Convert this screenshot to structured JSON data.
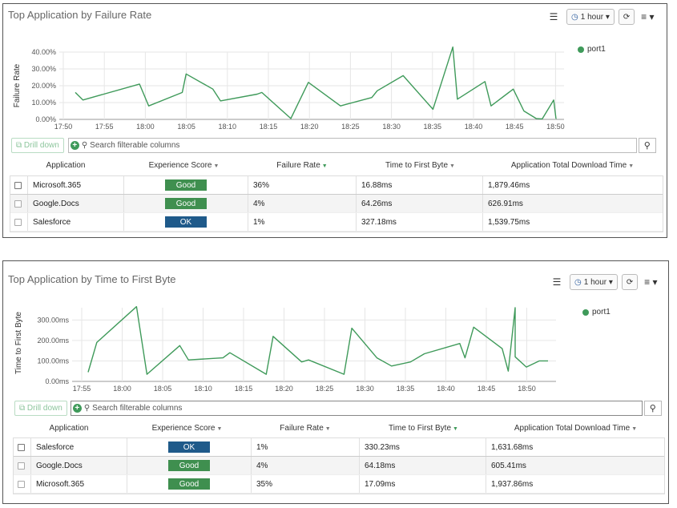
{
  "panels": [
    {
      "title": "Top Application by Failure Rate",
      "time_range": "1 hour",
      "legend": "port1",
      "chart_data": {
        "type": "line",
        "ylabel": "Failure Rate",
        "y_ticks": [
          "40.00%",
          "30.00%",
          "20.00%",
          "10.00%",
          "0.00%"
        ],
        "ylim": [
          0,
          40
        ],
        "x_ticks": [
          "17:50",
          "17:55",
          "18:00",
          "18:05",
          "18:10",
          "18:15",
          "18:20",
          "18:25",
          "18:30",
          "18:35",
          "18:40",
          "18:45",
          "18:50"
        ],
        "series": [
          {
            "name": "port1",
            "color": "#3f9a5a",
            "x": [
              17.5,
              18.5,
              25.9,
              27.1,
              31.5,
              32.0,
              35.5,
              36.5,
              41.3,
              41.9,
              45.7,
              48.0,
              52.2,
              53.0,
              56.3,
              57.0,
              60.4,
              64.3,
              66.9,
              67.5,
              71.1,
              71.9,
              74.8,
              76.2,
              77.8,
              78.6,
              80.1,
              80.4
            ],
            "y": [
              16,
              11.5,
              21,
              8,
              16,
              27,
              18,
              11,
              15,
              16,
              0.5,
              22,
              8,
              9,
              13,
              17,
              26,
              6,
              43,
              12,
              22.5,
              8,
              18,
              5,
              0.5,
              0.3,
              11.5,
              0.3
            ]
          }
        ]
      },
      "drill_label": "Drill down",
      "search_placeholder": "Search filterable columns",
      "columns": [
        "Application",
        "Experience Score",
        "Failure Rate",
        "Time to First Byte",
        "Application Total Download Time"
      ],
      "rows": [
        {
          "app": "Microsoft.365",
          "score": "Good",
          "score_color": "#3f8f4f",
          "failure": "36%",
          "ttfb": "16.88ms",
          "download": "1,879.46ms"
        },
        {
          "app": "Google.Docs",
          "score": "Good",
          "score_color": "#3f8f4f",
          "failure": "4%",
          "ttfb": "64.26ms",
          "download": "626.91ms"
        },
        {
          "app": "Salesforce",
          "score": "OK",
          "score_color": "#1f5a8a",
          "failure": "1%",
          "ttfb": "327.18ms",
          "download": "1,539.75ms"
        }
      ]
    },
    {
      "title": "Top Application by Time to First Byte",
      "time_range": "1 hour",
      "legend": "port1",
      "chart_data": {
        "type": "line",
        "ylabel": "Time to First Byte",
        "y_ticks": [
          "300.00ms",
          "200.00ms",
          "100.00ms",
          "0.00ms"
        ],
        "ylim": [
          0,
          360
        ],
        "x_ticks": [
          "17:55",
          "18:00",
          "18:05",
          "18:10",
          "18:15",
          "18:20",
          "18:25",
          "18:30",
          "18:35",
          "18:40",
          "18:45",
          "18:50"
        ],
        "series": [
          {
            "name": "port1",
            "color": "#3f9a5a",
            "x": [
              55.4,
              56.4,
              61.0,
              62.2,
              66.0,
              67.0,
              71.0,
              71.8,
              76.0,
              76.8,
              80.1,
              80.9,
              85.0,
              85.9,
              88.8,
              90.5,
              92.7,
              94.3,
              98.4,
              99.0,
              100.0,
              103.3,
              104.0,
              104.8,
              104.8,
              106.1,
              107.6,
              108.6
            ],
            "y": [
              45,
              190,
              365,
              35,
              175,
              105,
              115,
              140,
              35,
              220,
              95,
              105,
              35,
              260,
              115,
              75,
              95,
              135,
              185,
              115,
              265,
              160,
              50,
              360,
              120,
              70,
              100,
              100
            ]
          }
        ]
      },
      "drill_label": "Drill down",
      "search_placeholder": "Search filterable columns",
      "columns": [
        "Application",
        "Experience Score",
        "Failure Rate",
        "Time to First Byte",
        "Application Total Download Time"
      ],
      "rows": [
        {
          "app": "Salesforce",
          "score": "OK",
          "score_color": "#1f5a8a",
          "failure": "1%",
          "ttfb": "330.23ms",
          "download": "1,631.68ms"
        },
        {
          "app": "Google.Docs",
          "score": "Good",
          "score_color": "#3f8f4f",
          "failure": "4%",
          "ttfb": "64.18ms",
          "download": "605.41ms"
        },
        {
          "app": "Microsoft.365",
          "score": "Good",
          "score_color": "#3f8f4f",
          "failure": "35%",
          "ttfb": "17.09ms",
          "download": "1,937.86ms"
        }
      ]
    }
  ]
}
